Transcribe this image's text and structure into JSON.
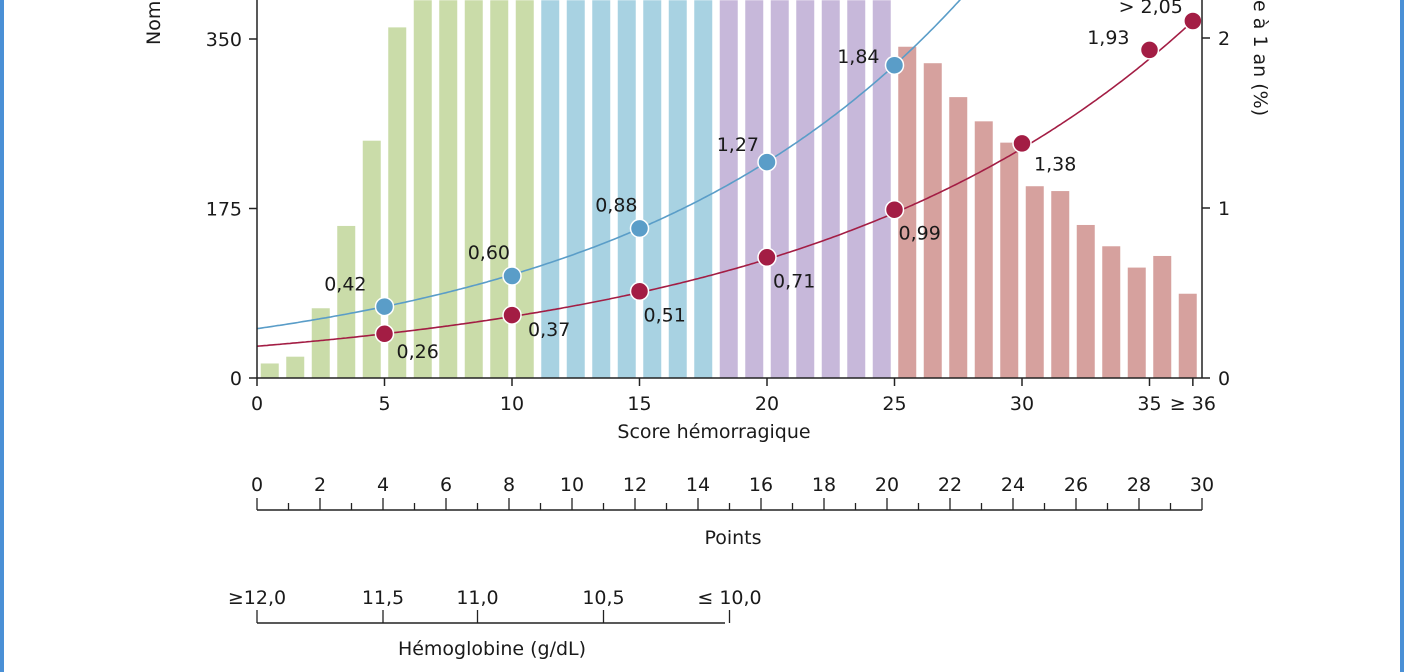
{
  "chart_data": {
    "type": "bar+line",
    "xlabel": "Score hémorragique",
    "ylabel_left": "Nom",
    "ylabel_right": "e à 1 an (%)",
    "x_tick_labels": [
      "0",
      "5",
      "10",
      "15",
      "20",
      "25",
      "30",
      "35",
      "≥ 36"
    ],
    "x_tick_values": [
      0,
      5,
      10,
      15,
      20,
      25,
      30,
      35,
      36.7
    ],
    "y_left_ticks": [
      "0",
      "175",
      "350"
    ],
    "y_left_tick_values": [
      0,
      175,
      350
    ],
    "y_right_ticks": [
      "0",
      "1",
      "2"
    ],
    "y_right_tick_values": [
      0,
      1,
      2
    ],
    "ylim_left": [
      0,
      390
    ],
    "ylim_right": [
      0,
      2.2
    ],
    "bars": {
      "values": [
        15,
        22,
        72,
        157,
        245,
        362,
        390,
        390,
        390,
        390,
        390,
        390,
        390,
        390,
        390,
        390,
        390,
        390,
        390,
        390,
        390,
        390,
        390,
        390,
        390,
        342,
        325,
        290,
        265,
        243,
        198,
        193,
        158,
        136,
        114,
        126,
        87
      ],
      "group_colors": [
        "#cadca9",
        "#a8d2e2",
        "#c7b8da",
        "#d6a19e"
      ],
      "groups": [
        [
          0,
          10
        ],
        [
          11,
          17
        ],
        [
          18,
          24
        ],
        [
          25,
          36
        ]
      ]
    },
    "series": [
      {
        "color": "#5a9dc8",
        "points": [
          {
            "x": 5,
            "y": 0.42,
            "label": "0,42"
          },
          {
            "x": 10,
            "y": 0.6,
            "label": "0,60"
          },
          {
            "x": 15,
            "y": 0.88,
            "label": "0,88"
          },
          {
            "x": 20,
            "y": 1.27,
            "label": "1,27"
          },
          {
            "x": 25,
            "y": 1.84,
            "label": "1,84"
          }
        ]
      },
      {
        "color": "#a31d44",
        "points": [
          {
            "x": 5,
            "y": 0.26,
            "label": "0,26"
          },
          {
            "x": 10,
            "y": 0.37,
            "label": "0,37"
          },
          {
            "x": 15,
            "y": 0.51,
            "label": "0,51"
          },
          {
            "x": 20,
            "y": 0.71,
            "label": "0,71"
          },
          {
            "x": 25,
            "y": 0.99,
            "label": "0,99"
          },
          {
            "x": 30,
            "y": 1.38,
            "label": "1,38"
          },
          {
            "x": 35,
            "y": 1.93,
            "label": "1,93"
          },
          {
            "x": 36.7,
            "y": 2.1,
            "label": "> 2,05"
          }
        ]
      }
    ]
  },
  "points_scale": {
    "title": "Points",
    "labels": [
      "0",
      "2",
      "4",
      "6",
      "8",
      "10",
      "12",
      "14",
      "16",
      "18",
      "20",
      "22",
      "24",
      "26",
      "28",
      "30"
    ],
    "min": 0,
    "max": 30
  },
  "hemoglobin_scale": {
    "title": "Hémoglobine (g/dL)",
    "ticks": [
      {
        "label": "≥12,0",
        "points": 0
      },
      {
        "label": "11,5",
        "points": 4
      },
      {
        "label": "11,0",
        "points": 7
      },
      {
        "label": "10,5",
        "points": 11
      },
      {
        "label": "≤ 10,0",
        "points": 15
      }
    ]
  }
}
